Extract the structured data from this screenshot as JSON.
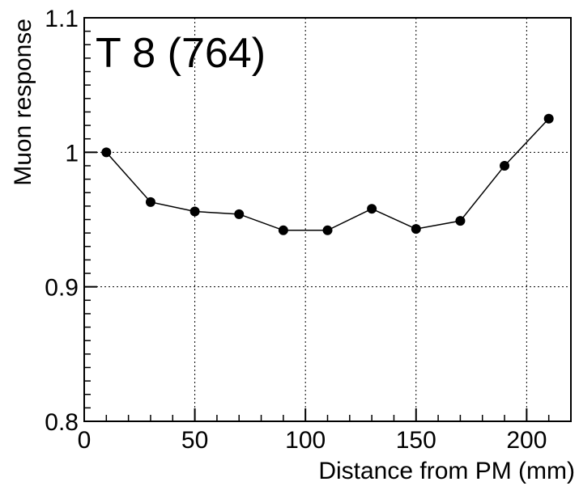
{
  "chart_data": {
    "type": "line",
    "title": "T 8 (764)",
    "xlabel": "Distance from PM (mm)",
    "ylabel": "Muon response",
    "xlim": [
      0,
      220
    ],
    "ylim": [
      0.8,
      1.1
    ],
    "grid": true,
    "x_ticks": [
      0,
      50,
      100,
      150,
      200
    ],
    "x_tick_labels": [
      "0",
      "50",
      "100",
      "150",
      "200"
    ],
    "y_ticks": [
      0.8,
      0.9,
      1.0,
      1.1
    ],
    "y_tick_labels": [
      "0.8",
      "0.9",
      "1",
      "1.1"
    ],
    "series": [
      {
        "x": [
          10,
          30,
          50,
          70,
          90,
          110,
          130,
          150,
          170,
          190,
          210
        ],
        "y": [
          1.0,
          0.963,
          0.956,
          0.954,
          0.942,
          0.942,
          0.958,
          0.943,
          0.949,
          0.99,
          1.025
        ]
      }
    ],
    "colors": {
      "line": "#000000",
      "marker": "#000000",
      "grid": "#000000"
    }
  }
}
